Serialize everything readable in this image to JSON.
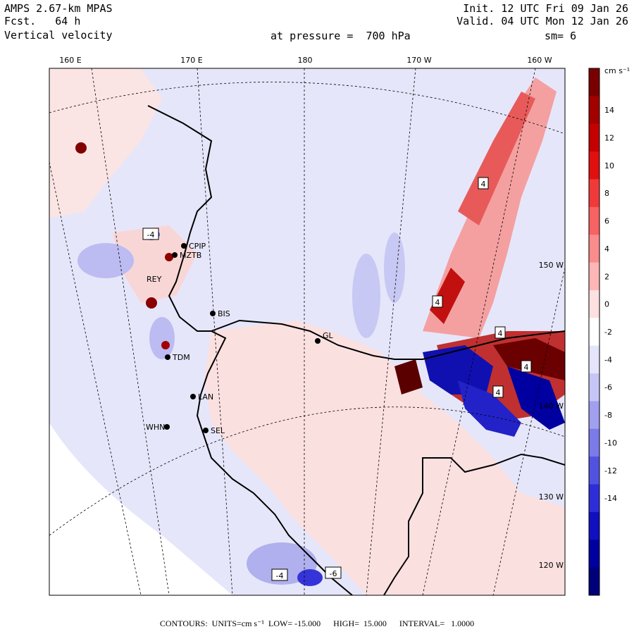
{
  "header": {
    "model": "AMPS 2.67-km MPAS",
    "forecast": "Fcst.   64 h",
    "field": "Vertical velocity",
    "init": "Init. 12 UTC Fri 09 Jan 26",
    "valid": "Valid. 04 UTC Mon 12 Jan 26",
    "pressure": "at pressure =  700 hPa",
    "smoothing": "sm= 6"
  },
  "top_axis_labels": [
    "160 E",
    "170 E",
    "180",
    "170 W",
    "160 W"
  ],
  "right_axis_labels": [
    "150 W",
    "140 W",
    "130 W",
    "120 W"
  ],
  "stations": [
    "CPIP",
    "MZTB",
    "REY",
    "BIS",
    "GL",
    "TDM",
    "LAN",
    "WHN",
    "SEL"
  ],
  "contour_labels": [
    "4",
    "4",
    "4",
    "4",
    "4",
    "-4",
    "-4",
    "-6"
  ],
  "colorbar": {
    "units": "cm s⁻¹",
    "tick_labels": [
      "14",
      "12",
      "10",
      "8",
      "6",
      "4",
      "2",
      "0",
      "-2",
      "-4",
      "-6",
      "-8",
      "-10",
      "-12",
      "-14"
    ],
    "colors": [
      "#7a0000",
      "#a30000",
      "#c40000",
      "#e01010",
      "#f03a3a",
      "#f76262",
      "#fb8c8c",
      "#fdb6b6",
      "#fde0e0",
      "#ffffff",
      "#e4e4fb",
      "#c6c6f6",
      "#a0a0ee",
      "#7a7ae8",
      "#5252e0",
      "#2e2ed8",
      "#1010c0",
      "#0000a0",
      "#00007a"
    ]
  },
  "footer": "CONTOURS:  UNITS=cm s⁻¹  LOW= -15.000      HIGH=  15.000      INTERVAL=   1.0000",
  "colors": {
    "bg_pos": "#fde6e6",
    "bg_neg": "#e6e6fa",
    "outside": "#ffffff",
    "coast": "#000000"
  }
}
